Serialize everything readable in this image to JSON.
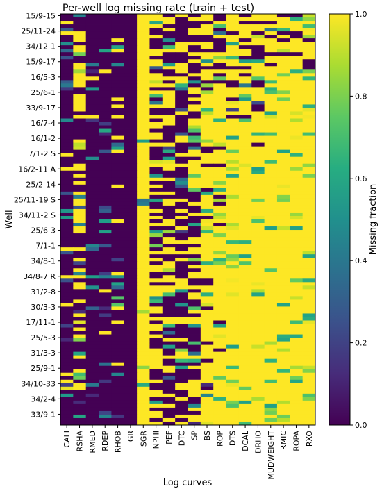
{
  "chart_data": {
    "type": "heatmap",
    "title": "Per-well log missing rate (train + test)",
    "xlabel": "Log curves",
    "ylabel": "Well",
    "colorbar": {
      "label": "Missing fraction",
      "ticks": [
        "0.0",
        "0.2",
        "0.4",
        "0.6",
        "0.8",
        "1.0"
      ],
      "range": [
        0,
        1
      ],
      "colormap": "viridis"
    },
    "x_categories": [
      "CALI",
      "RSHA",
      "RMED",
      "RDEP",
      "RHOB",
      "GR",
      "SGR",
      "NPHI",
      "PEF",
      "DTC",
      "SP",
      "BS",
      "ROP",
      "DTS",
      "DCAL",
      "DRHO",
      "MUDWEIGHT",
      "RMIC",
      "ROPA",
      "RXO"
    ],
    "y_tick_labels": [
      "15/9-15",
      "25/11-24",
      "34/12-1",
      "15/9-17",
      "16/5-3",
      "25/6-1",
      "33/9-17",
      "16/7-4",
      "16/1-2",
      "7/1-2 S",
      "16/2-11 A",
      "25/2-14",
      "25/11-19 S",
      "34/11-2 S",
      "25/6-3",
      "7/1-1",
      "34/8-1",
      "34/8-7 R",
      "31/2-8",
      "30/3-3",
      "17/11-1",
      "25/5-3",
      "31/3-3",
      "25/9-1",
      "34/10-33",
      "34/2-4",
      "33/9-1"
    ],
    "n_rows": 118,
    "tick_every_rows": 4.4,
    "column_missing_profile": [
      0.06,
      0.55,
      0.03,
      0.02,
      0.15,
      0.0,
      0.96,
      0.5,
      0.45,
      0.35,
      0.55,
      0.55,
      0.6,
      0.72,
      0.8,
      0.7,
      0.75,
      0.78,
      0.68,
      0.7
    ],
    "column_fill_from_row": [
      null,
      null,
      null,
      null,
      null,
      null,
      null,
      null,
      null,
      null,
      null,
      27,
      22,
      30,
      35,
      38,
      18,
      12,
      14,
      16
    ]
  }
}
